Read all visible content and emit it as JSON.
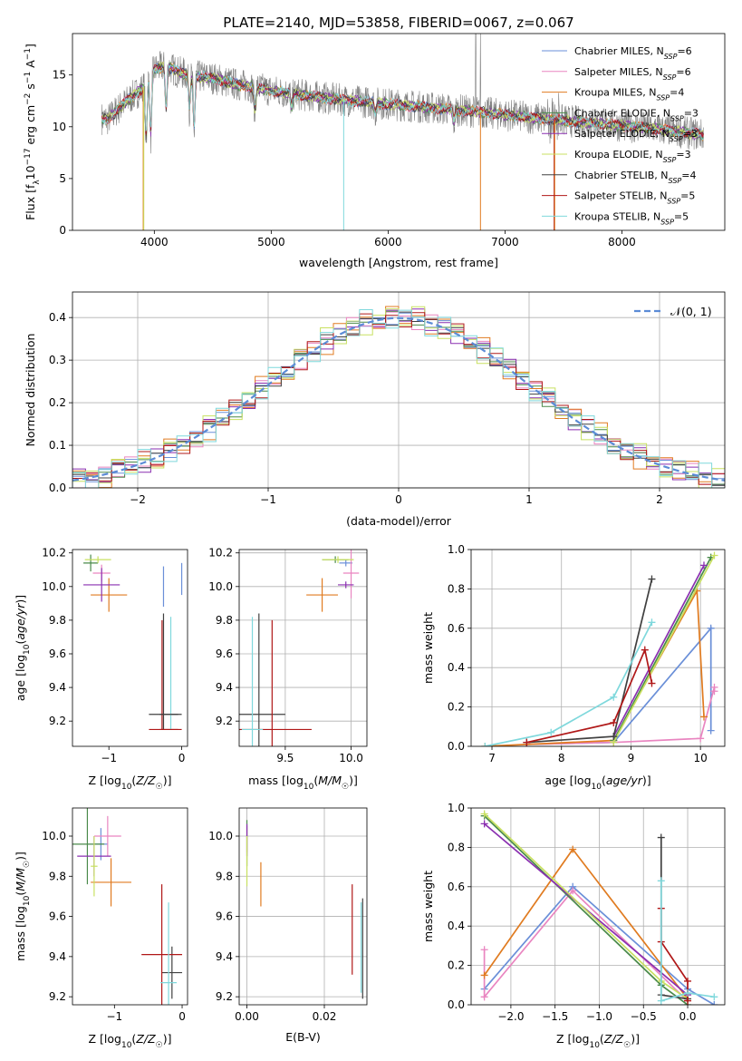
{
  "figure_title": "PLATE=2140, MJD=53858, FIBERID=0067, z=0.067",
  "colors": {
    "Chabrier MILES": "#6a8fd8",
    "Salpeter MILES": "#e985c0",
    "Kroupa MILES": "#e07b20",
    "Chabrier ELODIE": "#4a8a4a",
    "Salpeter ELODIE": "#8a2fb0",
    "Kroupa ELODIE": "#c8e060",
    "Chabrier STELIB": "#404040",
    "Salpeter STELIB": "#b01818",
    "Kroupa STELIB": "#7fd8dc",
    "data": "#808080"
  },
  "chart_data": [
    {
      "id": "spectrum",
      "type": "line",
      "title": "PLATE=2140, MJD=53858, FIBERID=0067, z=0.067",
      "xlabel": "wavelength [Angstrom, rest frame]",
      "ylabel": "Flux [f_λ 10^-17 erg cm^-2 s^-1 A^-1]",
      "xlim": [
        3300,
        8880
      ],
      "ylim": [
        0,
        19
      ],
      "xticks": [
        4000,
        5000,
        6000,
        7000,
        8000
      ],
      "yticks": [
        0,
        5,
        10,
        15
      ],
      "grid": false,
      "legend_position": "upper right",
      "legend": [
        {
          "model": "Chabrier MILES",
          "nssp": "6"
        },
        {
          "model": "Salpeter MILES",
          "nssp": "6"
        },
        {
          "model": "Kroupa MILES",
          "nssp": "4"
        },
        {
          "model": "Chabrier ELODIE",
          "nssp": "3"
        },
        {
          "model": "Salpeter ELODIE",
          "nssp": "3"
        },
        {
          "model": "Kroupa ELODIE",
          "nssp": "3"
        },
        {
          "model": "Chabrier STELIB",
          "nssp": "4"
        },
        {
          "model": "Salpeter STELIB",
          "nssp": "5"
        },
        {
          "model": "Kroupa STELIB",
          "nssp": "5"
        }
      ],
      "continuum": {
        "x": [
          3550,
          3600,
          3700,
          3800,
          3900,
          4000,
          4100,
          4200,
          4300,
          4400,
          4500,
          4700,
          5000,
          5300,
          5600,
          6000,
          6400,
          6800,
          7200,
          7600,
          8000,
          8300,
          8500,
          8700
        ],
        "y": [
          10.8,
          10.7,
          11.8,
          12.8,
          13.7,
          15.5,
          15.9,
          15.3,
          15.0,
          14.8,
          14.7,
          14.1,
          13.5,
          13.0,
          12.6,
          12.2,
          11.8,
          11.4,
          10.9,
          10.5,
          10.1,
          9.8,
          9.5,
          9.2
        ]
      },
      "absorption_dips": [
        {
          "x": 3930,
          "y": 8.0
        },
        {
          "x": 3970,
          "y": 8.6
        },
        {
          "x": 4101,
          "y": 11.2
        },
        {
          "x": 4300,
          "y": 11.6
        },
        {
          "x": 4340,
          "y": 9.2
        },
        {
          "x": 4860,
          "y": 11.4
        },
        {
          "x": 5175,
          "y": 11.6
        },
        {
          "x": 5890,
          "y": 11.3
        },
        {
          "x": 6563,
          "y": 10.3
        }
      ],
      "data_spikes": [
        {
          "x": 6750,
          "y": 19.0
        },
        {
          "x": 6790,
          "y": 19.0
        },
        {
          "x": 7460,
          "y": 13.0
        }
      ],
      "zero_drops": [
        3905,
        3910,
        5620,
        6790,
        7420,
        7425
      ]
    },
    {
      "id": "residuals",
      "type": "line",
      "xlabel": "(data-model)/error",
      "ylabel": "Normed distribution",
      "xlim": [
        -2.5,
        2.5
      ],
      "ylim": [
        0,
        0.46
      ],
      "xticks": [
        -2,
        -1,
        0,
        1,
        2
      ],
      "yticks": [
        0.0,
        0.1,
        0.2,
        0.3,
        0.4
      ],
      "grid": true,
      "legend_position": "upper right",
      "reference_label": "𝒩(0, 1)",
      "reference": {
        "mean": 0,
        "sigma": 1
      },
      "bin_width": 0.1,
      "hist_ripple": [
        0.012,
        -0.018,
        0.022,
        -0.008,
        0.03,
        -0.02,
        0.015,
        -0.025,
        0.01,
        0.02,
        -0.015,
        0.028,
        -0.01,
        -0.022,
        0.018,
        0.005,
        -0.028,
        0.024,
        -0.006,
        0.014,
        -0.019,
        0.026,
        -0.012,
        0.008,
        -0.024,
        0.02,
        0.011,
        -0.016,
        0.029,
        -0.007,
        -0.021,
        0.017,
        0.006,
        -0.027,
        0.023,
        -0.004,
        0.013,
        -0.018,
        0.025,
        -0.011,
        0.009,
        -0.023,
        0.019,
        0.004,
        -0.014,
        0.027,
        -0.009,
        -0.02,
        0.016,
        0.003
      ]
    },
    {
      "id": "age_vs_Z",
      "type": "scatter",
      "xlabel": "Z [log10(Z/Z☉)]",
      "ylabel": "age [log10(age/yr)]",
      "xlim": [
        -1.5,
        0.08
      ],
      "ylim": [
        9.05,
        10.22
      ],
      "xticks": [
        -1,
        0
      ],
      "yticks": [
        9.2,
        9.4,
        9.6,
        9.8,
        10.0,
        10.2
      ],
      "grid": false,
      "points": [
        {
          "model": "Chabrier MILES",
          "x": -0.25,
          "y": 10.0,
          "xerr": 0.0,
          "yerr": 0.12
        },
        {
          "model": "Salpeter MILES",
          "x": -1.1,
          "y": 10.08,
          "xerr": 0.12,
          "yerr": 0.05
        },
        {
          "model": "Kroupa MILES",
          "x": -1.0,
          "y": 9.95,
          "xerr": 0.25,
          "yerr": 0.1
        },
        {
          "model": "Chabrier ELODIE",
          "x": -1.25,
          "y": 10.14,
          "xerr": 0.1,
          "yerr": 0.05
        },
        {
          "model": "Salpeter ELODIE",
          "x": -1.1,
          "y": 10.01,
          "xerr": 0.25,
          "yerr": 0.1
        },
        {
          "model": "Kroupa ELODIE",
          "x": -1.15,
          "y": 10.16,
          "xerr": 0.18,
          "yerr": 0.02
        },
        {
          "model": "Chabrier STELIB",
          "x": -0.25,
          "y": 9.24,
          "xerr": 0.2,
          "yerr": 0.0
        },
        {
          "model": "Salpeter STELIB",
          "x": -0.25,
          "y": 9.15,
          "xerr": 0.2,
          "yerr": 0.0
        },
        {
          "model": "Kroupa STELIB",
          "x": -0.25,
          "y": 9.2,
          "xerr": 0.0,
          "yerr": 0.0
        }
      ],
      "vbars": [
        {
          "model": "Chabrier STELIB",
          "x": -0.25,
          "y0": 9.15,
          "y1": 9.84
        },
        {
          "model": "Salpeter STELIB",
          "x": -0.27,
          "y0": 9.15,
          "y1": 9.8
        },
        {
          "model": "Kroupa STELIB",
          "x": -0.15,
          "y0": 9.15,
          "y1": 9.82
        },
        {
          "model": "Chabrier MILES",
          "x": 0.0,
          "y0": 9.95,
          "y1": 10.14
        }
      ],
      "hbars": [
        {
          "model": "Chabrier STELIB",
          "y": 9.24,
          "x0": -0.3,
          "x1": 0.0
        },
        {
          "model": "Salpeter STELIB",
          "y": 9.15,
          "x0": -0.3,
          "x1": 0.0
        }
      ]
    },
    {
      "id": "age_vs_mass",
      "type": "scatter",
      "xlabel": "mass [log10(M/M☉)]",
      "ylabel": "",
      "xlim": [
        9.15,
        10.12
      ],
      "ylim": [
        9.05,
        10.22
      ],
      "xticks": [
        9.5,
        10.0
      ],
      "yticks": [
        9.2,
        9.4,
        9.6,
        9.8,
        10.0,
        10.2
      ],
      "grid": true,
      "points": [
        {
          "model": "Chabrier MILES",
          "x": 9.96,
          "y": 10.14,
          "xerr": 0.05,
          "yerr": 0.02
        },
        {
          "model": "Salpeter MILES",
          "x": 10.0,
          "y": 10.08,
          "xerr": 0.06,
          "yerr": 0.15
        },
        {
          "model": "Kroupa MILES",
          "x": 9.78,
          "y": 9.95,
          "xerr": 0.12,
          "yerr": 0.1
        },
        {
          "model": "Chabrier ELODIE",
          "x": 9.88,
          "y": 10.16,
          "xerr": 0.1,
          "yerr": 0.02
        },
        {
          "model": "Salpeter ELODIE",
          "x": 9.96,
          "y": 10.01,
          "xerr": 0.06,
          "yerr": 0.02
        },
        {
          "model": "Kroupa ELODIE",
          "x": 9.9,
          "y": 10.16,
          "xerr": 0.12,
          "yerr": 0.02
        },
        {
          "model": "Chabrier STELIB",
          "x": 9.3,
          "y": 9.24,
          "xerr": 0.2,
          "yerr": 0.6
        },
        {
          "model": "Salpeter STELIB",
          "x": 9.4,
          "y": 9.15,
          "xerr": 0.3,
          "yerr": 0.65
        },
        {
          "model": "Kroupa STELIB",
          "x": 9.25,
          "y": 9.15,
          "xerr": 0.08,
          "yerr": 0.67
        }
      ]
    },
    {
      "id": "weight_vs_age",
      "type": "line",
      "xlabel": "age [log10(age/yr)]",
      "ylabel": "mass weight",
      "xlim": [
        6.7,
        10.35
      ],
      "ylim": [
        0,
        1.0
      ],
      "xticks": [
        7,
        8,
        9,
        10
      ],
      "yticks": [
        0.0,
        0.2,
        0.4,
        0.6,
        0.8,
        1.0
      ],
      "grid": true,
      "series": [
        {
          "model": "Chabrier MILES",
          "x": [
            7.5,
            8.75,
            10.15,
            10.15
          ],
          "y": [
            0.01,
            0.02,
            0.6,
            0.08
          ]
        },
        {
          "model": "Salpeter MILES",
          "x": [
            7.5,
            8.75,
            10.0,
            10.2,
            10.2
          ],
          "y": [
            0.01,
            0.02,
            0.04,
            0.3,
            0.28
          ]
        },
        {
          "model": "Kroupa MILES",
          "x": [
            6.9,
            8.75,
            9.95,
            10.05
          ],
          "y": [
            0.0,
            0.03,
            0.79,
            0.15
          ]
        },
        {
          "model": "Chabrier ELODIE",
          "x": [
            8.75,
            10.15
          ],
          "y": [
            0.03,
            0.96
          ]
        },
        {
          "model": "Salpeter ELODIE",
          "x": [
            8.75,
            10.05
          ],
          "y": [
            0.05,
            0.92
          ]
        },
        {
          "model": "Kroupa ELODIE",
          "x": [
            8.75,
            10.2
          ],
          "y": [
            0.02,
            0.97
          ]
        },
        {
          "model": "Chabrier STELIB",
          "x": [
            7.5,
            8.75,
            9.3
          ],
          "y": [
            0.02,
            0.05,
            0.85
          ]
        },
        {
          "model": "Salpeter STELIB",
          "x": [
            7.5,
            8.75,
            9.2,
            9.3
          ],
          "y": [
            0.02,
            0.12,
            0.49,
            0.32
          ]
        },
        {
          "model": "Kroupa STELIB",
          "x": [
            6.9,
            7.85,
            8.75,
            9.3
          ],
          "y": [
            0.0,
            0.07,
            0.25,
            0.63
          ]
        }
      ]
    },
    {
      "id": "mass_vs_Z",
      "type": "scatter",
      "xlabel": "Z [log10(Z/Z☉)]",
      "ylabel": "mass [log10(M/M☉)]",
      "xlim": [
        -1.62,
        0.08
      ],
      "ylim": [
        9.16,
        10.14
      ],
      "xticks": [
        -1,
        0
      ],
      "yticks": [
        9.2,
        9.4,
        9.6,
        9.8,
        10.0
      ],
      "grid": false,
      "points": [
        {
          "model": "Chabrier MILES",
          "x": -1.2,
          "y": 9.96,
          "xerr": 0.1,
          "yerr": 0.08
        },
        {
          "model": "Salpeter MILES",
          "x": -1.1,
          "y": 10.0,
          "xerr": 0.2,
          "yerr": 0.1
        },
        {
          "model": "Kroupa MILES",
          "x": -1.05,
          "y": 9.77,
          "xerr": 0.3,
          "yerr": 0.12
        },
        {
          "model": "Chabrier ELODIE",
          "x": -1.4,
          "y": 9.96,
          "xerr": 0.25,
          "yerr": 0.2
        },
        {
          "model": "Salpeter ELODIE",
          "x": -1.3,
          "y": 9.9,
          "xerr": 0.25,
          "yerr": 0.1
        },
        {
          "model": "Kroupa ELODIE",
          "x": -1.3,
          "y": 9.85,
          "xerr": 0.05,
          "yerr": 0.15
        },
        {
          "model": "Chabrier STELIB",
          "x": -0.15,
          "y": 9.32,
          "xerr": 0.15,
          "yerr": 0.13
        },
        {
          "model": "Salpeter STELIB",
          "x": -0.3,
          "y": 9.41,
          "xerr": 0.3,
          "yerr": 0.35
        },
        {
          "model": "Kroupa STELIB",
          "x": -0.2,
          "y": 9.27,
          "xerr": 0.12,
          "yerr": 0.4
        }
      ]
    },
    {
      "id": "mass_vs_ebv",
      "type": "scatter",
      "xlabel": "E(B-V)",
      "ylabel": "",
      "xlim": [
        -0.002,
        0.031
      ],
      "ylim": [
        9.16,
        10.14
      ],
      "xticks": [
        0.0,
        0.02
      ],
      "yticks": [
        9.2,
        9.4,
        9.6,
        9.8,
        10.0
      ],
      "grid": true,
      "vbars": [
        {
          "model": "Salpeter MILES",
          "x": 0.0,
          "y0": 9.92,
          "y1": 10.05
        },
        {
          "model": "Chabrier ELODIE",
          "x": 0.0,
          "y0": 9.85,
          "y1": 10.08
        },
        {
          "model": "Salpeter ELODIE",
          "x": 0.0,
          "y0": 9.9,
          "y1": 10.06
        },
        {
          "model": "Kroupa ELODIE",
          "x": 0.0,
          "y0": 9.75,
          "y1": 10.0
        },
        {
          "model": "Kroupa MILES",
          "x": 0.0036,
          "y0": 9.65,
          "y1": 9.87
        },
        {
          "model": "Salpeter STELIB",
          "x": 0.0272,
          "y0": 9.31,
          "y1": 9.76
        },
        {
          "model": "Chabrier STELIB",
          "x": 0.0299,
          "y0": 9.19,
          "y1": 9.69
        },
        {
          "model": "Kroupa STELIB",
          "x": 0.0295,
          "y0": 9.22,
          "y1": 9.67
        }
      ]
    },
    {
      "id": "weight_vs_Z",
      "type": "line",
      "xlabel": "Z [log10(Z/Z☉)]",
      "ylabel": "mass weight",
      "xlim": [
        -2.45,
        0.42
      ],
      "ylim": [
        0,
        1.0
      ],
      "xticks": [
        -2.0,
        -1.5,
        -1.0,
        -0.5,
        0.0
      ],
      "yticks": [
        0.0,
        0.2,
        0.4,
        0.6,
        0.8,
        1.0
      ],
      "grid": true,
      "series": [
        {
          "model": "Chabrier MILES",
          "x": [
            -2.3,
            -1.3,
            0.0,
            0.3
          ],
          "y": [
            0.08,
            0.6,
            0.08,
            0.0
          ]
        },
        {
          "model": "Salpeter MILES",
          "x": [
            -2.3,
            -2.3,
            -1.3,
            0.0
          ],
          "y": [
            0.28,
            0.04,
            0.58,
            0.02
          ]
        },
        {
          "model": "Kroupa MILES",
          "x": [
            -2.3,
            -1.3,
            0.0
          ],
          "y": [
            0.15,
            0.79,
            0.03
          ]
        },
        {
          "model": "Chabrier ELODIE",
          "x": [
            -2.3,
            -0.3,
            0.0
          ],
          "y": [
            0.96,
            0.1,
            0.0
          ]
        },
        {
          "model": "Salpeter ELODIE",
          "x": [
            -2.3,
            0.0
          ],
          "y": [
            0.92,
            0.05
          ]
        },
        {
          "model": "Kroupa ELODIE",
          "x": [
            -2.3,
            -0.3,
            0.0
          ],
          "y": [
            0.97,
            0.12,
            0.03
          ]
        },
        {
          "model": "Chabrier STELIB",
          "x": [
            -0.3,
            -0.3,
            0.0
          ],
          "y": [
            0.85,
            0.05,
            0.03
          ]
        },
        {
          "model": "Salpeter STELIB",
          "x": [
            -0.3,
            -0.3,
            0.0,
            0.0
          ],
          "y": [
            0.49,
            0.32,
            0.12,
            0.02
          ]
        },
        {
          "model": "Kroupa STELIB",
          "x": [
            -0.3,
            -0.3,
            0.0,
            0.3
          ],
          "y": [
            0.63,
            0.02,
            0.06,
            0.04
          ]
        }
      ]
    }
  ]
}
